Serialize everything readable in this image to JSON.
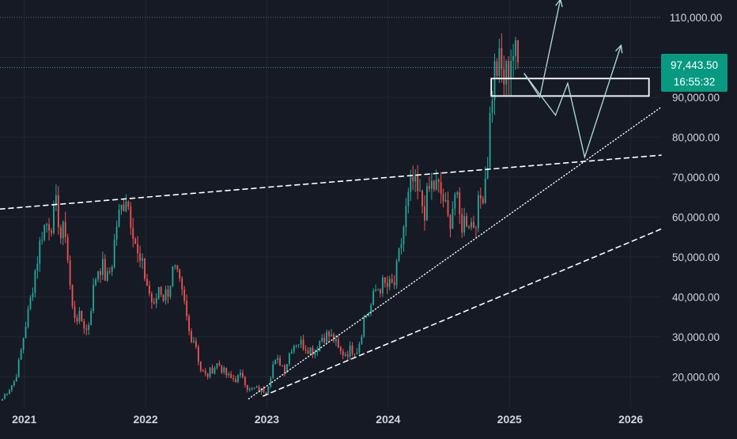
{
  "colors": {
    "background": "#161a25",
    "grid": "#232733",
    "up": "#26a69a",
    "down": "#ef5350",
    "axis_text": "#d1d4dc",
    "drawing": "#ffffff",
    "projection": "#b2dfdb",
    "price_label_bg": "#089981",
    "price_line": "#26a69a"
  },
  "chart_data": {
    "type": "candlestick",
    "x_ticks": [
      "2021",
      "2022",
      "2023",
      "2024",
      "2025",
      "2026"
    ],
    "y_ticks": [
      "20,000.00",
      "30,000.00",
      "40,000.00",
      "50,000.00",
      "60,000.00",
      "70,000.00",
      "80,000.00",
      "90,000.00",
      "100,000.00",
      "110,000.00"
    ],
    "y_tick_values": [
      20000,
      30000,
      40000,
      50000,
      60000,
      70000,
      80000,
      90000,
      100000,
      110000
    ],
    "xlim": [
      2020.8,
      2026.25
    ],
    "ylim": [
      12350,
      114350
    ],
    "grid": true,
    "current_price": {
      "value": 97443.5,
      "label": "97,443.50",
      "countdown": "16:55:32"
    },
    "series": [
      {
        "anchors": [
          [
            2020.82,
            14500
          ],
          [
            2020.85,
            16000
          ],
          [
            2020.92,
            19000
          ],
          [
            2020.96,
            24000
          ],
          [
            2021.01,
            33000
          ],
          [
            2021.04,
            37000
          ],
          [
            2021.08,
            45000
          ],
          [
            2021.11,
            50000
          ],
          [
            2021.15,
            57000
          ],
          [
            2021.19,
            58500
          ],
          [
            2021.23,
            59000
          ],
          [
            2021.27,
            63000
          ],
          [
            2021.3,
            55000
          ],
          [
            2021.34,
            57000
          ],
          [
            2021.37,
            45000
          ],
          [
            2021.4,
            36000
          ],
          [
            2021.44,
            35000
          ],
          [
            2021.48,
            34000
          ],
          [
            2021.52,
            31000
          ],
          [
            2021.56,
            40000
          ],
          [
            2021.6,
            47000
          ],
          [
            2021.64,
            48000
          ],
          [
            2021.68,
            44000
          ],
          [
            2021.72,
            48000
          ],
          [
            2021.76,
            58000
          ],
          [
            2021.8,
            62000
          ],
          [
            2021.84,
            66000
          ],
          [
            2021.87,
            61000
          ],
          [
            2021.9,
            57000
          ],
          [
            2021.94,
            49000
          ],
          [
            2021.98,
            47000
          ],
          [
            2022.03,
            41000
          ],
          [
            2022.07,
            37000
          ],
          [
            2022.11,
            43000
          ],
          [
            2022.15,
            40000
          ],
          [
            2022.19,
            42000
          ],
          [
            2022.23,
            47000
          ],
          [
            2022.27,
            44000
          ],
          [
            2022.32,
            38000
          ],
          [
            2022.36,
            31000
          ],
          [
            2022.41,
            29000
          ],
          [
            2022.45,
            22000
          ],
          [
            2022.5,
            20000
          ],
          [
            2022.55,
            22000
          ],
          [
            2022.6,
            23500
          ],
          [
            2022.65,
            21000
          ],
          [
            2022.7,
            19500
          ],
          [
            2022.75,
            19500
          ],
          [
            2022.8,
            20500
          ],
          [
            2022.85,
            16500
          ],
          [
            2022.9,
            17000
          ],
          [
            2022.95,
            16600
          ],
          [
            2023.0,
            16800
          ],
          [
            2023.05,
            23000
          ],
          [
            2023.1,
            24000
          ],
          [
            2023.15,
            22000
          ],
          [
            2023.2,
            27500
          ],
          [
            2023.25,
            29000
          ],
          [
            2023.3,
            28000
          ],
          [
            2023.35,
            27000
          ],
          [
            2023.4,
            26500
          ],
          [
            2023.45,
            30000
          ],
          [
            2023.5,
            30500
          ],
          [
            2023.55,
            29500
          ],
          [
            2023.6,
            26000
          ],
          [
            2023.65,
            26000
          ],
          [
            2023.7,
            27000
          ],
          [
            2023.75,
            27000
          ],
          [
            2023.8,
            34500
          ],
          [
            2023.85,
            37000
          ],
          [
            2023.9,
            42000
          ],
          [
            2023.95,
            43000
          ],
          [
            2024.0,
            42500
          ],
          [
            2024.05,
            43000
          ],
          [
            2024.1,
            52000
          ],
          [
            2024.15,
            62000
          ],
          [
            2024.2,
            69000
          ],
          [
            2024.25,
            65000
          ],
          [
            2024.3,
            62000
          ],
          [
            2024.35,
            68000
          ],
          [
            2024.4,
            67500
          ],
          [
            2024.45,
            65000
          ],
          [
            2024.5,
            58000
          ],
          [
            2024.55,
            66000
          ],
          [
            2024.6,
            58000
          ],
          [
            2024.65,
            60000
          ],
          [
            2024.7,
            58000
          ],
          [
            2024.75,
            63000
          ],
          [
            2024.79,
            68000
          ],
          [
            2024.82,
            75000
          ],
          [
            2024.85,
            90000
          ],
          [
            2024.88,
            97000
          ],
          [
            2024.92,
            98000
          ],
          [
            2024.95,
            94000
          ],
          [
            2024.98,
            96000
          ],
          [
            2025.02,
            102000
          ],
          [
            2025.05,
            100000
          ],
          [
            2025.08,
            97000
          ]
        ]
      }
    ],
    "annotations": {
      "resistance_dashed": {
        "style": "dashed",
        "from": [
          2020.8,
          62000
        ],
        "to": [
          2026.25,
          75500
        ]
      },
      "support_dashed": {
        "style": "dashed",
        "from": [
          2022.97,
          15200
        ],
        "to": [
          2026.25,
          57000
        ]
      },
      "trend_dotted": {
        "style": "dotted",
        "from": [
          2022.85,
          14500
        ],
        "to": [
          2026.25,
          87500
        ]
      },
      "zone_box": {
        "x": [
          2024.85,
          2026.15
        ],
        "y": [
          91500,
          93500
        ]
      },
      "projection_1": [
        [
          2025.12,
          96000
        ],
        [
          2025.25,
          90000
        ],
        [
          2025.42,
          114500
        ]
      ],
      "projection_2": [
        [
          2025.12,
          96000
        ],
        [
          2025.38,
          85500
        ],
        [
          2025.48,
          93500
        ],
        [
          2025.62,
          75000
        ],
        [
          2025.92,
          103000
        ]
      ]
    }
  }
}
